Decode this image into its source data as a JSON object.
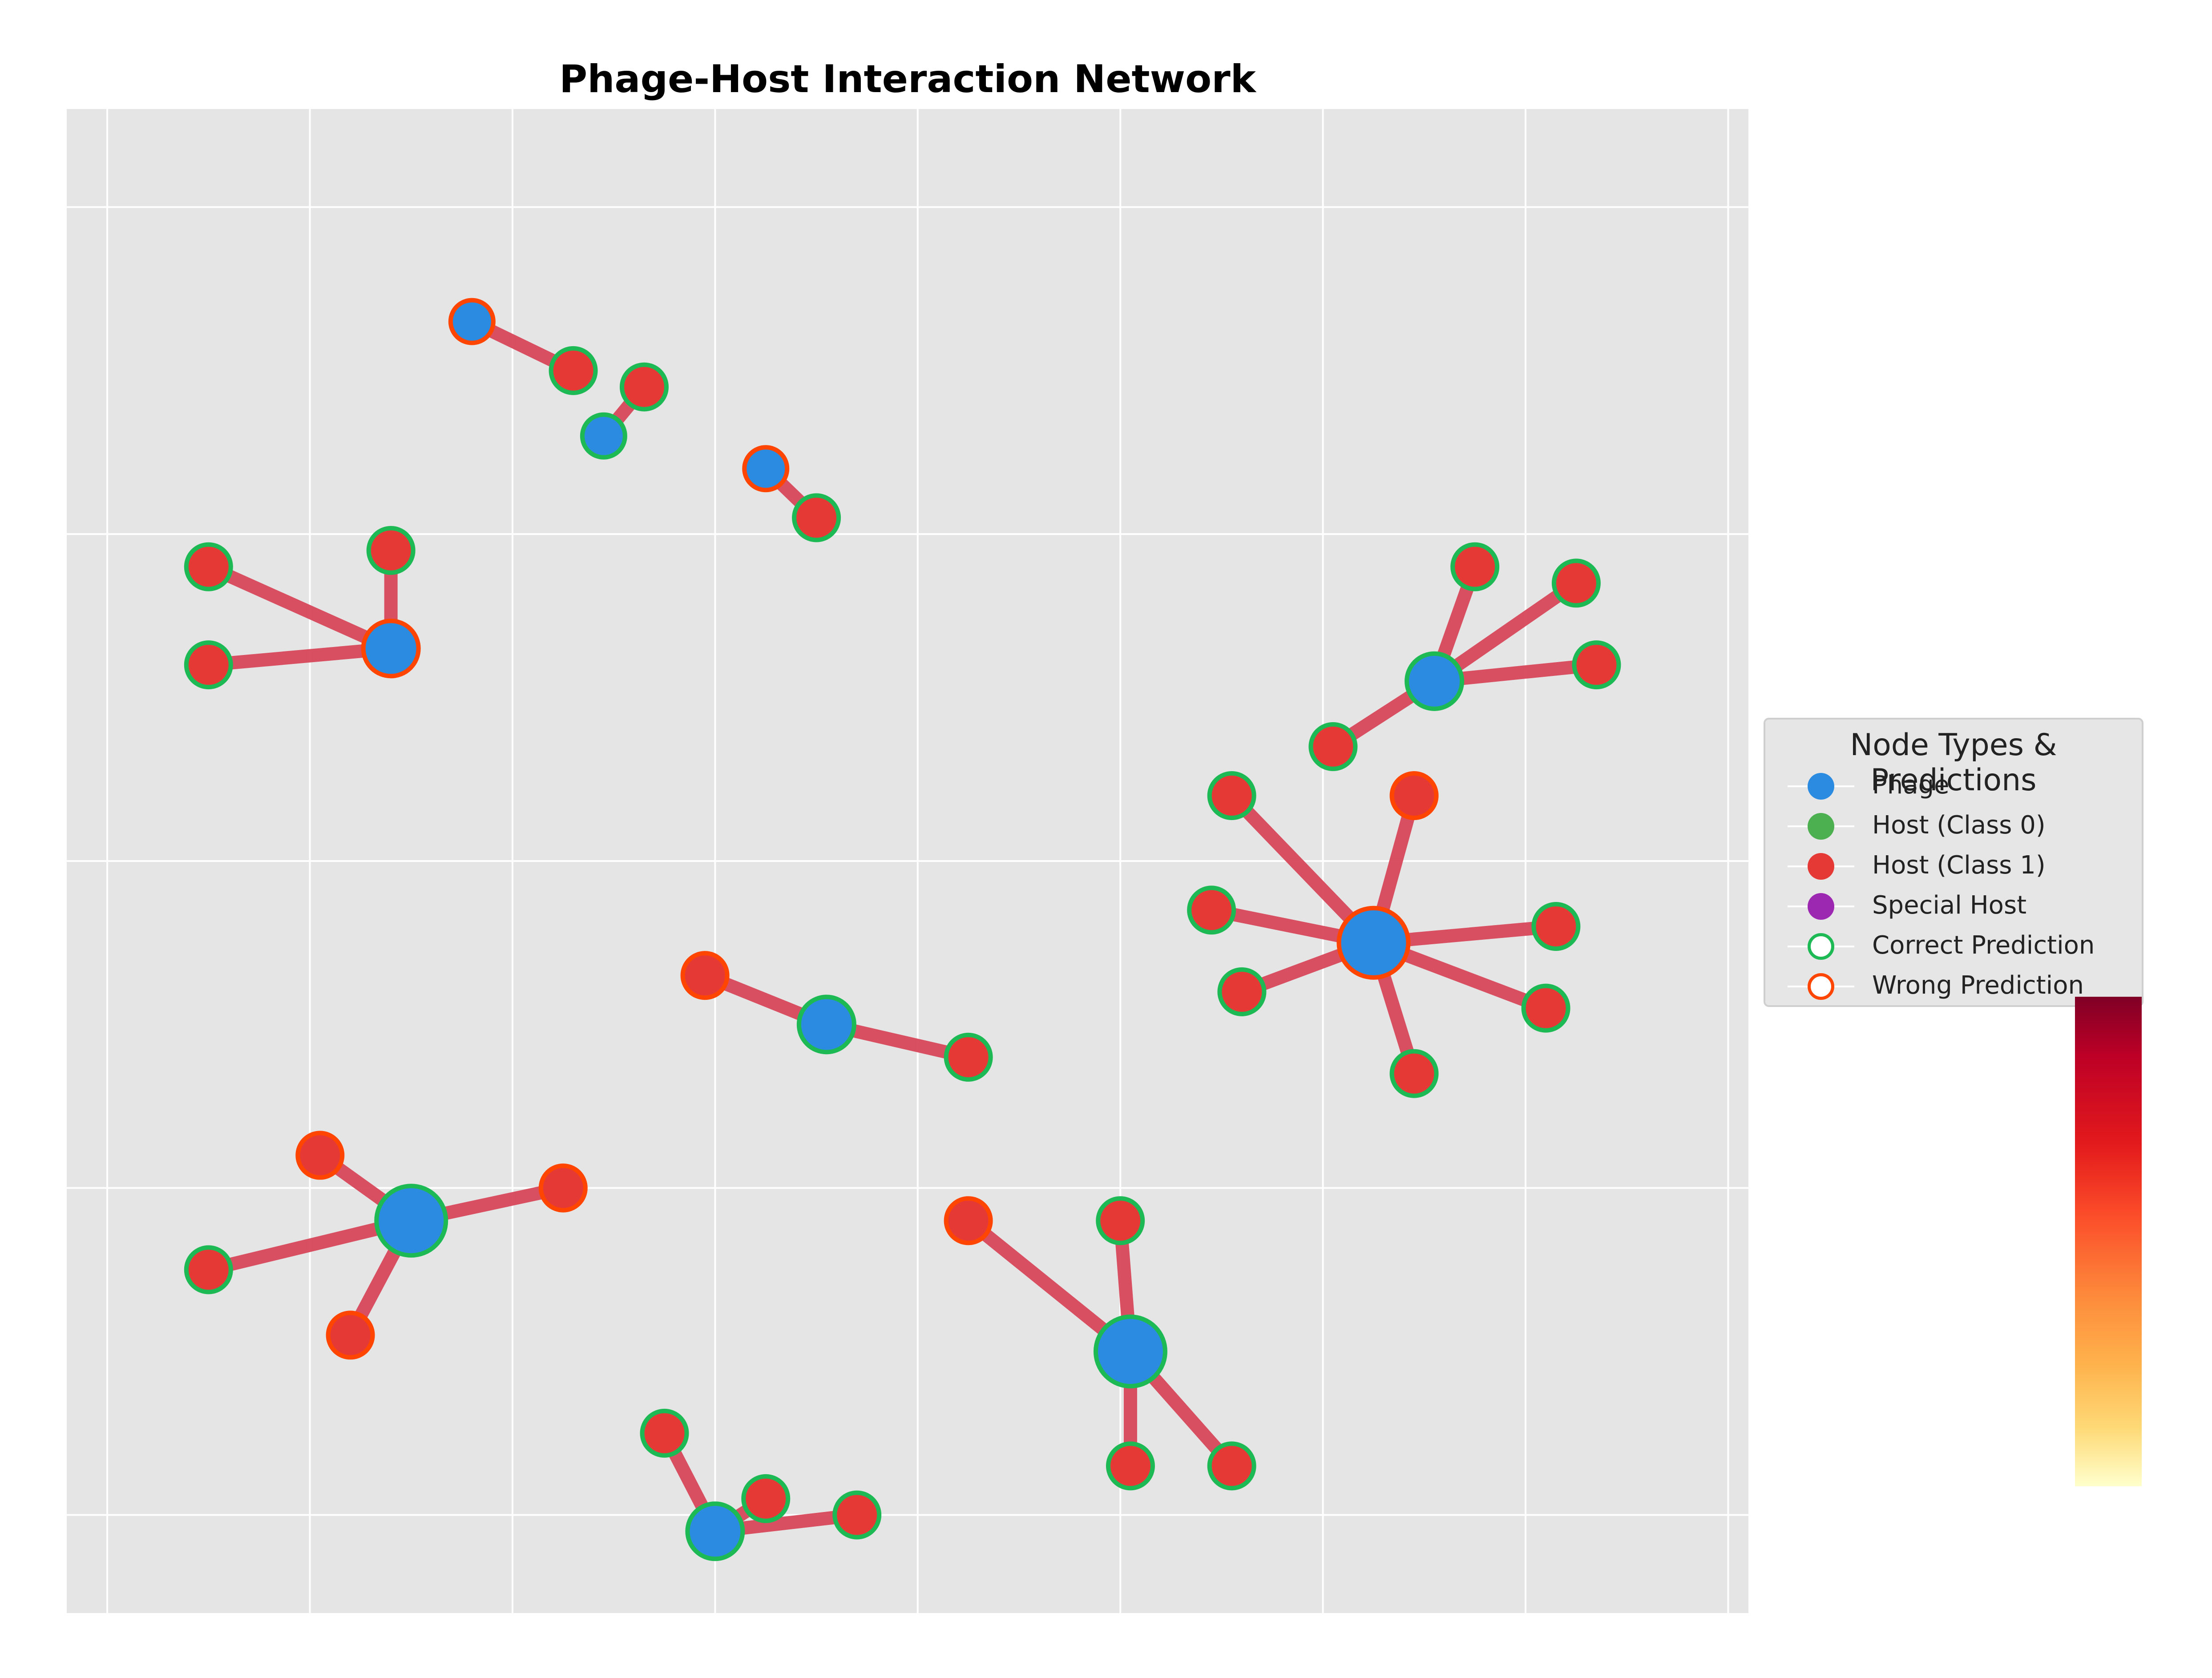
{
  "title": "Phage-Host Interaction Network",
  "colors": {
    "phage": "#2b8be0",
    "host_class0": "#4caf50",
    "host_class1": "#e53935",
    "special_host": "#9c27b0",
    "correct": "#1db954",
    "wrong": "#ff4500",
    "edge": "#d8475a",
    "plot_bg": "#e5e5e5",
    "grid": "#ffffff"
  },
  "legend": {
    "title": "Node Types & Predictions",
    "items": [
      {
        "label": "Phage",
        "kind": "phage"
      },
      {
        "label": "Host (Class 0)",
        "kind": "host_class0"
      },
      {
        "label": "Host (Class 1)",
        "kind": "host_class1"
      },
      {
        "label": "Special Host",
        "kind": "special_host"
      },
      {
        "label": "Correct Prediction",
        "kind": "correct"
      },
      {
        "label": "Wrong Prediction",
        "kind": "wrong"
      }
    ]
  },
  "chart_data": {
    "type": "network",
    "title": "Phage-Host Interaction Network",
    "grid": true,
    "legend_position": "right",
    "colorbar": {
      "colormap": "YlOrRd"
    },
    "xlim": [
      -0.2,
      8.1
    ],
    "ylim": [
      0.2,
      4.8
    ],
    "nodes": [
      {
        "id": "P1",
        "type": "phage",
        "x": 1.4,
        "y": 3.15,
        "size": "medium",
        "prediction": "wrong"
      },
      {
        "id": "H1a",
        "type": "host_class1",
        "x": 0.5,
        "y": 3.4,
        "prediction": "correct"
      },
      {
        "id": "H1b",
        "type": "host_class1",
        "x": 1.4,
        "y": 3.45,
        "prediction": "correct"
      },
      {
        "id": "H1c",
        "type": "host_class1",
        "x": 0.5,
        "y": 3.1,
        "prediction": "correct"
      },
      {
        "id": "P2",
        "type": "phage",
        "x": 1.8,
        "y": 4.15,
        "size": "small",
        "prediction": "wrong"
      },
      {
        "id": "H2a",
        "type": "host_class1",
        "x": 2.3,
        "y": 4.0,
        "prediction": "correct"
      },
      {
        "id": "P3",
        "type": "phage",
        "x": 2.45,
        "y": 3.8,
        "size": "small",
        "prediction": "correct"
      },
      {
        "id": "H3a",
        "type": "host_class1",
        "x": 2.65,
        "y": 3.95,
        "prediction": "correct"
      },
      {
        "id": "P4",
        "type": "phage",
        "x": 3.25,
        "y": 3.7,
        "size": "small",
        "prediction": "wrong"
      },
      {
        "id": "H4a",
        "type": "host_class1",
        "x": 3.5,
        "y": 3.55,
        "prediction": "correct"
      },
      {
        "id": "P5",
        "type": "phage",
        "x": 6.55,
        "y": 3.05,
        "size": "medium",
        "prediction": "correct"
      },
      {
        "id": "H5a",
        "type": "host_class1",
        "x": 6.75,
        "y": 3.4,
        "prediction": "correct"
      },
      {
        "id": "H5b",
        "type": "host_class1",
        "x": 7.25,
        "y": 3.35,
        "prediction": "correct"
      },
      {
        "id": "H5c",
        "type": "host_class1",
        "x": 7.35,
        "y": 3.1,
        "prediction": "correct"
      },
      {
        "id": "H5d",
        "type": "host_class1",
        "x": 6.05,
        "y": 2.85,
        "prediction": "correct"
      },
      {
        "id": "P6",
        "type": "phage",
        "x": 6.25,
        "y": 2.25,
        "size": "large",
        "prediction": "wrong"
      },
      {
        "id": "H6a",
        "type": "host_class1",
        "x": 5.55,
        "y": 2.7,
        "prediction": "correct"
      },
      {
        "id": "H6b",
        "type": "host_class1",
        "x": 6.45,
        "y": 2.7,
        "prediction": "wrong"
      },
      {
        "id": "H6c",
        "type": "host_class1",
        "x": 5.45,
        "y": 2.35,
        "prediction": "correct"
      },
      {
        "id": "H6d",
        "type": "host_class1",
        "x": 7.15,
        "y": 2.3,
        "prediction": "correct"
      },
      {
        "id": "H6e",
        "type": "host_class1",
        "x": 5.6,
        "y": 2.1,
        "prediction": "correct"
      },
      {
        "id": "H6f",
        "type": "host_class1",
        "x": 7.1,
        "y": 2.05,
        "prediction": "correct"
      },
      {
        "id": "H6g",
        "type": "host_class1",
        "x": 6.45,
        "y": 1.85,
        "prediction": "correct"
      },
      {
        "id": "P7",
        "type": "phage",
        "x": 3.55,
        "y": 2.0,
        "size": "medium",
        "prediction": "correct"
      },
      {
        "id": "H7a",
        "type": "host_class1",
        "x": 2.95,
        "y": 2.15,
        "prediction": "wrong"
      },
      {
        "id": "H7b",
        "type": "host_class1",
        "x": 4.25,
        "y": 1.9,
        "prediction": "correct"
      },
      {
        "id": "P8",
        "type": "phage",
        "x": 1.5,
        "y": 1.4,
        "size": "large",
        "prediction": "correct"
      },
      {
        "id": "H8a",
        "type": "host_class1",
        "x": 1.05,
        "y": 1.6,
        "prediction": "wrong"
      },
      {
        "id": "H8b",
        "type": "host_class1",
        "x": 2.25,
        "y": 1.5,
        "prediction": "wrong"
      },
      {
        "id": "H8c",
        "type": "host_class1",
        "x": 0.5,
        "y": 1.25,
        "prediction": "correct"
      },
      {
        "id": "H8d",
        "type": "host_class1",
        "x": 1.2,
        "y": 1.05,
        "prediction": "wrong"
      },
      {
        "id": "P9",
        "type": "phage",
        "x": 5.05,
        "y": 1.0,
        "size": "large",
        "prediction": "correct"
      },
      {
        "id": "H9a",
        "type": "host_class1",
        "x": 4.25,
        "y": 1.4,
        "prediction": "wrong"
      },
      {
        "id": "H9b",
        "type": "host_class1",
        "x": 5.0,
        "y": 1.4,
        "prediction": "correct"
      },
      {
        "id": "H9c",
        "type": "host_class1",
        "x": 5.05,
        "y": 0.65,
        "prediction": "correct"
      },
      {
        "id": "H9d",
        "type": "host_class1",
        "x": 5.55,
        "y": 0.65,
        "prediction": "correct"
      },
      {
        "id": "P10",
        "type": "phage",
        "x": 3.0,
        "y": 0.45,
        "size": "medium",
        "prediction": "correct"
      },
      {
        "id": "H10a",
        "type": "host_class1",
        "x": 2.75,
        "y": 0.75,
        "prediction": "correct"
      },
      {
        "id": "H10b",
        "type": "host_class1",
        "x": 3.25,
        "y": 0.55,
        "prediction": "correct"
      },
      {
        "id": "H10c",
        "type": "host_class1",
        "x": 3.7,
        "y": 0.5,
        "prediction": "correct"
      }
    ],
    "edges": [
      [
        "P1",
        "H1a"
      ],
      [
        "P1",
        "H1b"
      ],
      [
        "P1",
        "H1c"
      ],
      [
        "P2",
        "H2a"
      ],
      [
        "P3",
        "H3a"
      ],
      [
        "P4",
        "H4a"
      ],
      [
        "P5",
        "H5a"
      ],
      [
        "P5",
        "H5b"
      ],
      [
        "P5",
        "H5c"
      ],
      [
        "P5",
        "H5d"
      ],
      [
        "P6",
        "H6a"
      ],
      [
        "P6",
        "H6b"
      ],
      [
        "P6",
        "H6c"
      ],
      [
        "P6",
        "H6d"
      ],
      [
        "P6",
        "H6e"
      ],
      [
        "P6",
        "H6f"
      ],
      [
        "P6",
        "H6g"
      ],
      [
        "P7",
        "H7a"
      ],
      [
        "P7",
        "H7b"
      ],
      [
        "P8",
        "H8a"
      ],
      [
        "P8",
        "H8b"
      ],
      [
        "P8",
        "H8c"
      ],
      [
        "P8",
        "H8d"
      ],
      [
        "P9",
        "H9a"
      ],
      [
        "P9",
        "H9b"
      ],
      [
        "P9",
        "H9c"
      ],
      [
        "P9",
        "H9d"
      ],
      [
        "P10",
        "H10a"
      ],
      [
        "P10",
        "H10b"
      ],
      [
        "P10",
        "H10c"
      ]
    ]
  }
}
